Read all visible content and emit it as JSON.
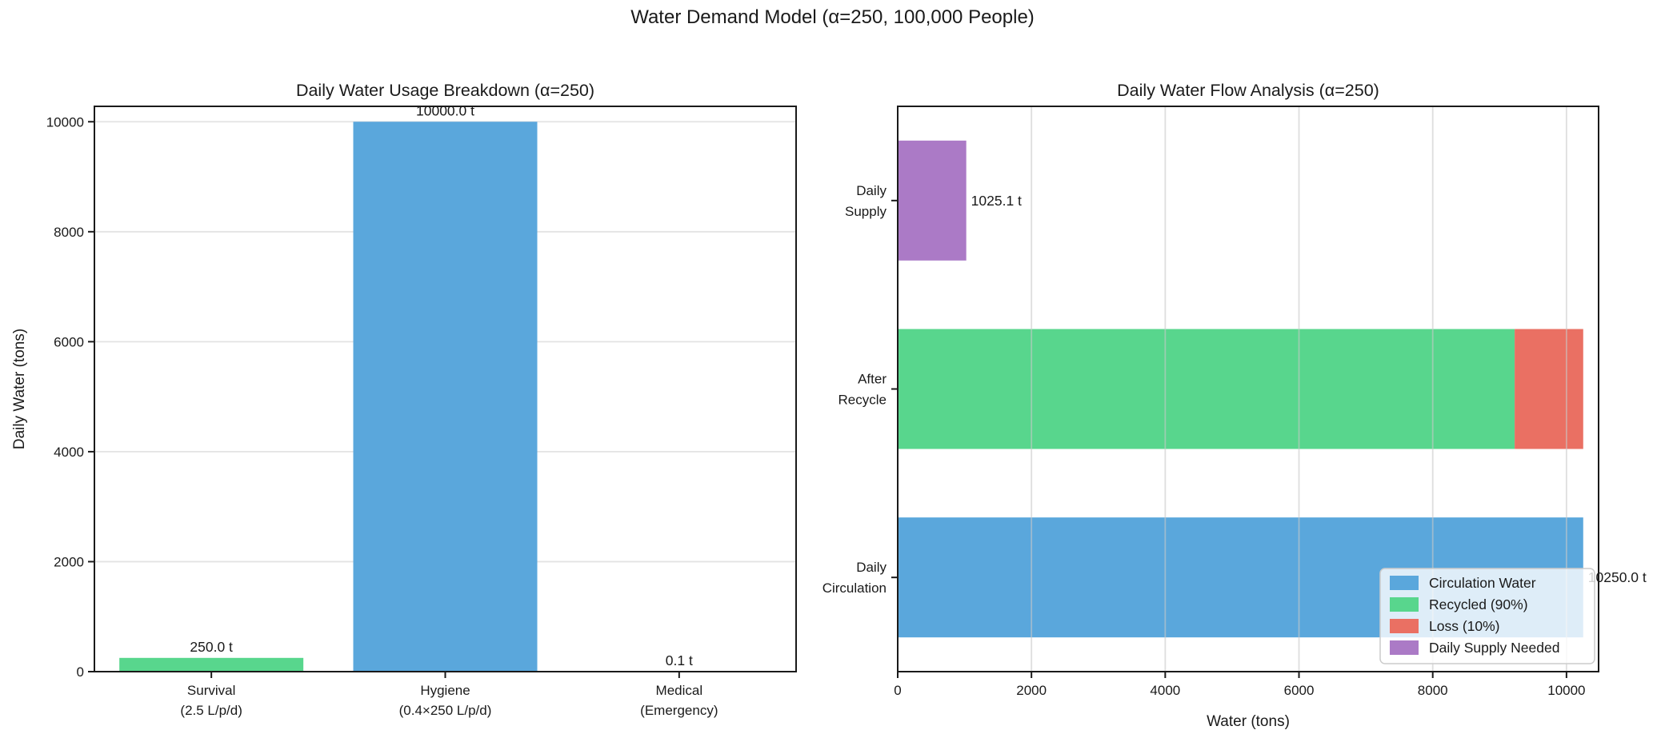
{
  "figure_title": "Water Demand Model (α=250, 100,000 People)",
  "colors": {
    "blue": "#5aa7dc",
    "green": "#58d68d",
    "red": "#ea7063",
    "purple": "#ab7ac6",
    "grid": "#e3e3e3",
    "spine": "#1a1a1a",
    "legend_border": "#cccccc"
  },
  "chart_data": [
    {
      "type": "bar",
      "title": "Daily Water Usage Breakdown (α=250)",
      "ylabel": "Daily Water (tons)",
      "ylim": [
        0,
        10280
      ],
      "grid": "horizontal",
      "categories": [
        [
          "Survival",
          "(2.5 L/p/d)"
        ],
        [
          "Hygiene",
          "(0.4×250 L/p/d)"
        ],
        [
          "Medical",
          "(Emergency)"
        ]
      ],
      "values": [
        250.0,
        10000.0,
        0.1
      ],
      "bar_labels": [
        "250.0 t",
        "10000.0 t",
        "0.1 t"
      ],
      "bar_colors": [
        "#58d68d",
        "#5aa7dc",
        "#ea7063"
      ],
      "yticks": [
        {
          "value": 0,
          "label": "0"
        },
        {
          "value": 2000,
          "label": "2000"
        },
        {
          "value": 4000,
          "label": "4000"
        },
        {
          "value": 6000,
          "label": "6000"
        },
        {
          "value": 8000,
          "label": "8000"
        },
        {
          "value": 10000,
          "label": "10000"
        }
      ]
    },
    {
      "type": "barh-stacked",
      "title": "Daily Water Flow Analysis (α=250)",
      "xlabel": "Water (tons)",
      "xlim": [
        0,
        10480
      ],
      "grid": "vertical",
      "xticks": [
        {
          "value": 0,
          "label": "0"
        },
        {
          "value": 2000,
          "label": "2000"
        },
        {
          "value": 4000,
          "label": "4000"
        },
        {
          "value": 6000,
          "label": "6000"
        },
        {
          "value": 8000,
          "label": "8000"
        },
        {
          "value": 10000,
          "label": "10000"
        }
      ],
      "bars": [
        {
          "category": [
            "Daily",
            "Supply"
          ],
          "label": "1025.1 t",
          "segments": [
            {
              "series": "Daily Supply Needed",
              "value": 1025.1,
              "color": "#ab7ac6"
            }
          ]
        },
        {
          "category": [
            "After",
            "Recycle"
          ],
          "label": "",
          "segments": [
            {
              "series": "Recycled (90%)",
              "value": 9225.0,
              "color": "#58d68d"
            },
            {
              "series": "Loss (10%)",
              "value": 1025.0,
              "color": "#ea7063"
            }
          ]
        },
        {
          "category": [
            "Daily",
            "Circulation"
          ],
          "label": "10250.0 t",
          "segments": [
            {
              "series": "Circulation Water",
              "value": 10250.0,
              "color": "#5aa7dc"
            }
          ]
        }
      ],
      "legend": {
        "position": "lower right",
        "entries": [
          {
            "label": "Circulation Water",
            "color": "#5aa7dc"
          },
          {
            "label": "Recycled (90%)",
            "color": "#58d68d"
          },
          {
            "label": "Loss (10%)",
            "color": "#ea7063"
          },
          {
            "label": "Daily Supply Needed",
            "color": "#ab7ac6"
          }
        ]
      }
    }
  ]
}
